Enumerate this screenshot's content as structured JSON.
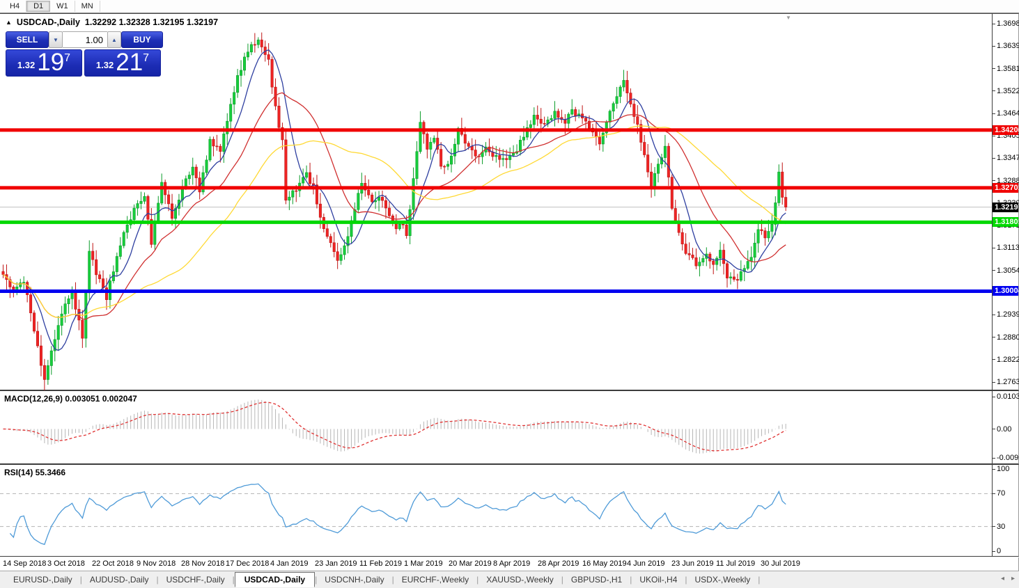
{
  "toolbar": {
    "timeframes": [
      {
        "label": "H4",
        "active": false
      },
      {
        "label": "D1",
        "active": true
      },
      {
        "label": "W1",
        "active": false
      },
      {
        "label": "MN",
        "active": false
      }
    ]
  },
  "chart": {
    "collapse_icon": "▲",
    "title": "USDCAD-,Daily",
    "ohlc": "1.32292 1.32328 1.32195 1.32197",
    "shift_marker": "▼"
  },
  "trade_panel": {
    "sell_label": "SELL",
    "buy_label": "BUY",
    "volume": "1.00",
    "spin_down_icon": "▼",
    "spin_up_icon": "▲",
    "sell_price": {
      "small": "1.32",
      "big": "19",
      "sup": "7"
    },
    "buy_price": {
      "small": "1.32",
      "big": "21",
      "sup": "7"
    },
    "accent": "#1d2fb6"
  },
  "price_axis": {
    "ticks": [
      "1.36980",
      "1.36395",
      "1.35810",
      "1.35225",
      "1.34640",
      "1.34055",
      "1.33470",
      "1.32885",
      "1.32300",
      "1.31715",
      "1.31130",
      "1.30545",
      "1.29390",
      "1.28805",
      "1.28220",
      "1.27635"
    ]
  },
  "levels": [
    {
      "label": "1.34206",
      "price": 1.34206,
      "color": "#f00000",
      "name": "resistance-upper"
    },
    {
      "label": "1.32701",
      "price": 1.32701,
      "color": "#f00000",
      "name": "resistance-lower"
    },
    {
      "label": "1.31801",
      "price": 1.31801,
      "color": "#00d800",
      "name": "support-green"
    },
    {
      "label": "1.30004",
      "price": 1.30004,
      "color": "#0000f0",
      "name": "support-blue"
    }
  ],
  "current_price": {
    "label": "1.32197",
    "price": 1.32197,
    "line_color": "#c0c0c0",
    "tag_bg": "#000000"
  },
  "macd": {
    "label": "MACD(12,26,9) 0.003051 0.002047",
    "axis_top": "0.010311",
    "axis_zero": "0.00",
    "axis_bottom": "-0.009203",
    "bar_color": "#b6b6b6",
    "signal_color": "#e03232"
  },
  "rsi": {
    "label": "RSI(14) 55.3466",
    "axis": [
      "100",
      "70",
      "30",
      "0"
    ],
    "levels": [
      70,
      30
    ],
    "line_color": "#4f9bd8",
    "level_color": "#b3b3b3"
  },
  "dates": {
    "labels": [
      "14 Sep 2018",
      "3 Oct 2018",
      "22 Oct 2018",
      "9 Nov 2018",
      "28 Nov 2018",
      "17 Dec 2018",
      "4 Jan 2019",
      "23 Jan 2019",
      "11 Feb 2019",
      "1 Mar 2019",
      "20 Mar 2019",
      "8 Apr 2019",
      "28 Apr 2019",
      "16 May 2019",
      "4 Jun 2019",
      "23 Jun 2019",
      "11 Jul 2019",
      "30 Jul 2019"
    ]
  },
  "tabs": {
    "items": [
      "EURUSD-,Daily",
      "AUDUSD-,Daily",
      "USDCHF-,Daily",
      "USDCAD-,Daily",
      "USDCNH-,Daily",
      "EURCHF-,Weekly",
      "XAUUSD-,Weekly",
      "GBPUSD-,H1",
      "UKOil-,H4",
      "USDX-,Weekly"
    ],
    "active": "USDCAD-,Daily",
    "scroll_left": "◂",
    "scroll_right": "▸"
  },
  "chart_data": {
    "type": "candlestick",
    "symbol": "USDCAD-",
    "timeframe": "Daily",
    "title": "USDCAD-,Daily",
    "ohlc_display": {
      "open": 1.32292,
      "high": 1.32328,
      "low": 1.32195,
      "close": 1.32197
    },
    "count": 228,
    "price_range": {
      "top": 1.3698,
      "bottom": 1.27635
    },
    "candle_up": "#17ce3c",
    "candle_up_edge": "#0c9c2a",
    "candle_down": "#ef2424",
    "candle_down_edge": "#bf1414",
    "anchors": [
      [
        0,
        1.3045
      ],
      [
        3,
        1.2995
      ],
      [
        6,
        1.303
      ],
      [
        9,
        1.289
      ],
      [
        12,
        1.2772
      ],
      [
        15,
        1.287
      ],
      [
        18,
        1.2975
      ],
      [
        20,
        1.2995
      ],
      [
        23,
        1.288
      ],
      [
        25,
        1.3105
      ],
      [
        27,
        1.305
      ],
      [
        30,
        1.2985
      ],
      [
        33,
        1.309
      ],
      [
        35,
        1.316
      ],
      [
        38,
        1.321
      ],
      [
        41,
        1.325
      ],
      [
        43,
        1.313
      ],
      [
        46,
        1.3285
      ],
      [
        49,
        1.3195
      ],
      [
        52,
        1.327
      ],
      [
        55,
        1.333
      ],
      [
        57,
        1.3255
      ],
      [
        60,
        1.3395
      ],
      [
        63,
        1.337
      ],
      [
        66,
        1.348
      ],
      [
        68,
        1.356
      ],
      [
        71,
        1.3625
      ],
      [
        74,
        1.366
      ],
      [
        77,
        1.36
      ],
      [
        79,
        1.348
      ],
      [
        81,
        1.339
      ],
      [
        82,
        1.323
      ],
      [
        85,
        1.327
      ],
      [
        88,
        1.3305
      ],
      [
        90,
        1.327
      ],
      [
        93,
        1.316
      ],
      [
        97,
        1.3078
      ],
      [
        99,
        1.3115
      ],
      [
        102,
        1.322
      ],
      [
        104,
        1.3285
      ],
      [
        107,
        1.324
      ],
      [
        109,
        1.325
      ],
      [
        112,
        1.3195
      ],
      [
        114,
        1.3165
      ],
      [
        116,
        1.318
      ],
      [
        117,
        1.314
      ],
      [
        119,
        1.329
      ],
      [
        121,
        1.344
      ],
      [
        123,
        1.3375
      ],
      [
        125,
        1.3405
      ],
      [
        127,
        1.332
      ],
      [
        130,
        1.3345
      ],
      [
        132,
        1.342
      ],
      [
        134,
        1.3385
      ],
      [
        137,
        1.335
      ],
      [
        140,
        1.337
      ],
      [
        142,
        1.3355
      ],
      [
        145,
        1.334
      ],
      [
        148,
        1.3355
      ],
      [
        152,
        1.342
      ],
      [
        154,
        1.346
      ],
      [
        157,
        1.3435
      ],
      [
        160,
        1.3465
      ],
      [
        163,
        1.3445
      ],
      [
        165,
        1.347
      ],
      [
        168,
        1.3455
      ],
      [
        171,
        1.342
      ],
      [
        173,
        1.3385
      ],
      [
        175,
        1.344
      ],
      [
        178,
        1.3515
      ],
      [
        180,
        1.3555
      ],
      [
        182,
        1.349
      ],
      [
        184,
        1.343
      ],
      [
        186,
        1.335
      ],
      [
        188,
        1.327
      ],
      [
        190,
        1.333
      ],
      [
        192,
        1.338
      ],
      [
        194,
        1.3215
      ],
      [
        196,
        1.316
      ],
      [
        198,
        1.31
      ],
      [
        201,
        1.3072
      ],
      [
        204,
        1.309
      ],
      [
        206,
        1.3062
      ],
      [
        208,
        1.3108
      ],
      [
        210,
        1.3042
      ],
      [
        213,
        1.3035
      ],
      [
        215,
        1.3055
      ],
      [
        217,
        1.309
      ],
      [
        219,
        1.316
      ],
      [
        221,
        1.3142
      ],
      [
        223,
        1.318
      ],
      [
        224,
        1.323
      ],
      [
        225,
        1.331
      ],
      [
        226,
        1.324
      ],
      [
        227,
        1.32197
      ]
    ],
    "moving_averages": [
      {
        "name": "ma-fast",
        "period": 8,
        "color": "#2e3fa0"
      },
      {
        "name": "ma-medium",
        "period": 22,
        "color": "#d03030"
      },
      {
        "name": "ma-slow",
        "period": 45,
        "color": "#ffd934"
      }
    ],
    "macd_params": {
      "fast": 12,
      "slow": 26,
      "signal": 9,
      "main": 0.003051,
      "signal_value": 0.002047
    },
    "rsi": {
      "period": 14,
      "value": 55.3466,
      "overbought": 70,
      "oversold": 30
    }
  }
}
